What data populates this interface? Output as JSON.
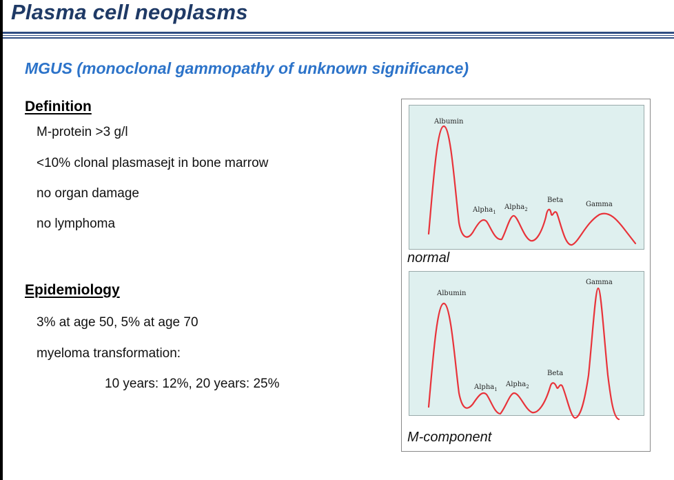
{
  "slide": {
    "title": "Plasma cell neoplasms",
    "subtitle": "MGUS (monoclonal gammopathy of unknown significance)",
    "definition": {
      "heading": "Definition",
      "items": [
        "M-protein >3 g/l",
        "<10% clonal plasmasejt in bone marrow",
        "no organ damage",
        "no lymphoma"
      ]
    },
    "epidemiology": {
      "heading": "Epidemiology",
      "items": [
        "3% at age 50, 5% at age 70",
        "myeloma transformation:",
        "10 years: 12%, 20 years: 25%"
      ]
    }
  },
  "figure": {
    "normal": {
      "caption": "normal",
      "labels": {
        "albumin": "Albumin",
        "alpha1": "Alpha",
        "alpha1_sub": "1",
        "alpha2": "Alpha",
        "alpha2_sub": "2",
        "beta": "Beta",
        "gamma": "Gamma"
      }
    },
    "mcomponent": {
      "caption": "M-component",
      "labels": {
        "albumin": "Albumin",
        "alpha1": "Alpha",
        "alpha1_sub": "1",
        "alpha2": "Alpha",
        "alpha2_sub": "2",
        "beta": "Beta",
        "gamma": "Gamma"
      }
    },
    "curve_color": "#e8333a"
  }
}
